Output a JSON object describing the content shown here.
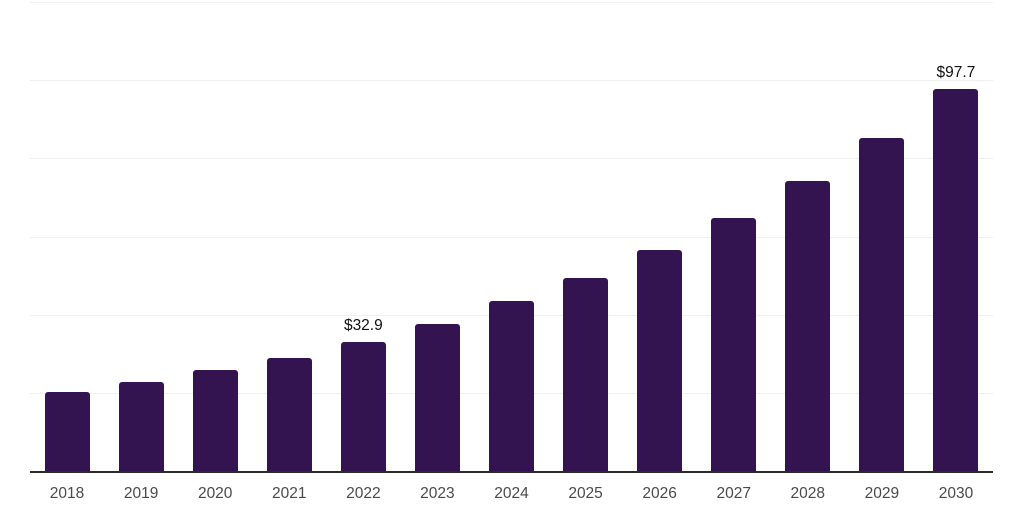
{
  "chart_data": {
    "type": "bar",
    "title": "",
    "xlabel": "",
    "ylabel": "",
    "categories": [
      "2018",
      "2019",
      "2020",
      "2021",
      "2022",
      "2023",
      "2024",
      "2025",
      "2026",
      "2027",
      "2028",
      "2029",
      "2030"
    ],
    "values": [
      20.1,
      22.8,
      25.9,
      29.0,
      32.9,
      37.7,
      43.4,
      49.4,
      56.5,
      64.8,
      74.3,
      85.2,
      97.7
    ],
    "point_labels": [
      "",
      "",
      "",
      "",
      "$32.9",
      "",
      "",
      "",
      "",
      "",
      "",
      "",
      "$97.7"
    ],
    "ylim": [
      0,
      120
    ],
    "gridline_step": 20,
    "grid": "horizontal-only",
    "legend_position": "none",
    "y_tick_labels_visible": false,
    "colors": {
      "bar": "#341450",
      "gridline": "#f0f0f0",
      "axis_line": "#2b2b2b",
      "tick_label": "#4a4a4a",
      "data_label": "#111111",
      "background": "#ffffff"
    }
  }
}
